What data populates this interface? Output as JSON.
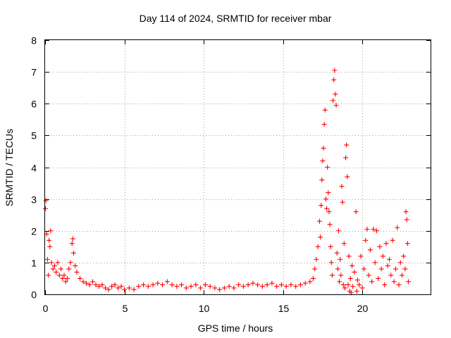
{
  "chart_data": {
    "type": "scatter",
    "title": "Day 114 of 2024, SRMTID for receiver mbar",
    "xlabel": "GPS time / hours",
    "ylabel": "SRMTID / TECUs",
    "xlim": [
      0,
      24.3
    ],
    "ylim": [
      0,
      8
    ],
    "xticks": [
      0,
      5,
      10,
      15,
      20
    ],
    "yticks": [
      0,
      1,
      2,
      3,
      4,
      5,
      6,
      7,
      8
    ],
    "grid": true,
    "marker": "+",
    "marker_color": "#ff0000",
    "series": [
      {
        "name": "SRMTID",
        "points": [
          [
            0.02,
            2.7
          ],
          [
            0.05,
            2.95
          ],
          [
            0.1,
            1.9
          ],
          [
            0.15,
            1.1
          ],
          [
            0.2,
            0.6
          ],
          [
            0.25,
            1.7
          ],
          [
            0.3,
            1.5
          ],
          [
            0.35,
            2.0
          ],
          [
            0.4,
            1.0
          ],
          [
            0.5,
            0.8
          ],
          [
            0.6,
            0.9
          ],
          [
            0.7,
            0.7
          ],
          [
            0.8,
            1.0
          ],
          [
            0.9,
            0.6
          ],
          [
            1.0,
            0.8
          ],
          [
            1.1,
            0.5
          ],
          [
            1.2,
            0.6
          ],
          [
            1.3,
            0.4
          ],
          [
            1.4,
            0.5
          ],
          [
            1.5,
            0.8
          ],
          [
            1.6,
            1.0
          ],
          [
            1.7,
            1.6
          ],
          [
            1.75,
            1.75
          ],
          [
            1.8,
            1.3
          ],
          [
            1.9,
            0.9
          ],
          [
            2.0,
            0.7
          ],
          [
            2.2,
            0.5
          ],
          [
            2.4,
            0.4
          ],
          [
            2.6,
            0.35
          ],
          [
            2.8,
            0.3
          ],
          [
            3.0,
            0.4
          ],
          [
            3.2,
            0.3
          ],
          [
            3.4,
            0.25
          ],
          [
            3.6,
            0.3
          ],
          [
            3.8,
            0.2
          ],
          [
            4.0,
            0.15
          ],
          [
            4.2,
            0.25
          ],
          [
            4.4,
            0.3
          ],
          [
            4.6,
            0.2
          ],
          [
            4.8,
            0.25
          ],
          [
            5.0,
            0.15
          ],
          [
            5.3,
            0.2
          ],
          [
            5.6,
            0.15
          ],
          [
            5.9,
            0.25
          ],
          [
            6.2,
            0.3
          ],
          [
            6.5,
            0.25
          ],
          [
            6.8,
            0.3
          ],
          [
            7.1,
            0.35
          ],
          [
            7.4,
            0.3
          ],
          [
            7.7,
            0.4
          ],
          [
            8.0,
            0.3
          ],
          [
            8.3,
            0.25
          ],
          [
            8.6,
            0.3
          ],
          [
            8.9,
            0.2
          ],
          [
            9.2,
            0.25
          ],
          [
            9.5,
            0.3
          ],
          [
            9.8,
            0.2
          ],
          [
            10.1,
            0.3
          ],
          [
            10.4,
            0.25
          ],
          [
            10.7,
            0.2
          ],
          [
            11.0,
            0.15
          ],
          [
            11.3,
            0.2
          ],
          [
            11.6,
            0.25
          ],
          [
            11.9,
            0.2
          ],
          [
            12.2,
            0.3
          ],
          [
            12.5,
            0.25
          ],
          [
            12.8,
            0.3
          ],
          [
            13.1,
            0.35
          ],
          [
            13.4,
            0.3
          ],
          [
            13.7,
            0.25
          ],
          [
            14.0,
            0.3
          ],
          [
            14.3,
            0.35
          ],
          [
            14.6,
            0.25
          ],
          [
            14.9,
            0.3
          ],
          [
            15.2,
            0.25
          ],
          [
            15.5,
            0.3
          ],
          [
            15.8,
            0.25
          ],
          [
            16.1,
            0.3
          ],
          [
            16.4,
            0.35
          ],
          [
            16.7,
            0.4
          ],
          [
            16.9,
            0.5
          ],
          [
            17.0,
            0.8
          ],
          [
            17.1,
            1.1
          ],
          [
            17.2,
            1.5
          ],
          [
            17.3,
            2.3
          ],
          [
            17.35,
            1.8
          ],
          [
            17.4,
            2.8
          ],
          [
            17.45,
            3.6
          ],
          [
            17.5,
            4.2
          ],
          [
            17.55,
            4.6
          ],
          [
            17.6,
            5.35
          ],
          [
            17.65,
            5.8
          ],
          [
            17.7,
            3.0
          ],
          [
            17.75,
            2.7
          ],
          [
            17.8,
            4.0
          ],
          [
            17.85,
            3.2
          ],
          [
            17.9,
            2.6
          ],
          [
            17.95,
            2.2
          ],
          [
            18.0,
            1.5
          ],
          [
            18.05,
            1.0
          ],
          [
            18.1,
            0.6
          ],
          [
            18.15,
            6.1
          ],
          [
            18.2,
            6.75
          ],
          [
            18.25,
            7.05
          ],
          [
            18.3,
            6.3
          ],
          [
            18.35,
            5.95
          ],
          [
            18.4,
            1.3
          ],
          [
            18.45,
            0.8
          ],
          [
            18.5,
            2.0
          ],
          [
            18.55,
            0.4
          ],
          [
            18.6,
            1.1
          ],
          [
            18.65,
            0.6
          ],
          [
            18.7,
            3.4
          ],
          [
            18.75,
            2.9
          ],
          [
            18.8,
            0.3
          ],
          [
            18.85,
            1.6
          ],
          [
            18.9,
            0.2
          ],
          [
            18.95,
            4.3
          ],
          [
            19.0,
            4.7
          ],
          [
            19.05,
            3.7
          ],
          [
            19.1,
            0.3
          ],
          [
            19.15,
            1.2
          ],
          [
            19.2,
            0.1
          ],
          [
            19.25,
            0.5
          ],
          [
            19.3,
            0.05
          ],
          [
            19.35,
            0.9
          ],
          [
            19.4,
            0.25
          ],
          [
            19.5,
            0.7
          ],
          [
            19.6,
            2.6
          ],
          [
            19.65,
            0.1
          ],
          [
            19.7,
            0.45
          ],
          [
            19.8,
            0.3
          ],
          [
            19.9,
            1.2
          ],
          [
            20.0,
            0.2
          ],
          [
            20.1,
            0.8
          ],
          [
            20.2,
            1.7
          ],
          [
            20.3,
            2.05
          ],
          [
            20.4,
            0.6
          ],
          [
            20.5,
            1.4
          ],
          [
            20.6,
            0.4
          ],
          [
            20.7,
            2.05
          ],
          [
            20.8,
            1.0
          ],
          [
            20.9,
            2.0
          ],
          [
            21.0,
            0.5
          ],
          [
            21.1,
            1.5
          ],
          [
            21.2,
            0.8
          ],
          [
            21.3,
            1.2
          ],
          [
            21.4,
            0.3
          ],
          [
            21.5,
            1.6
          ],
          [
            21.6,
            0.9
          ],
          [
            21.7,
            1.1
          ],
          [
            21.8,
            0.6
          ],
          [
            21.9,
            1.7
          ],
          [
            22.0,
            0.4
          ],
          [
            22.1,
            0.8
          ],
          [
            22.2,
            2.1
          ],
          [
            22.3,
            0.3
          ],
          [
            22.4,
            1.0
          ],
          [
            22.5,
            0.6
          ],
          [
            22.6,
            1.2
          ],
          [
            22.7,
            0.8
          ],
          [
            22.75,
            2.6
          ],
          [
            22.8,
            2.35
          ],
          [
            22.85,
            1.6
          ],
          [
            22.9,
            0.4
          ]
        ]
      }
    ]
  }
}
